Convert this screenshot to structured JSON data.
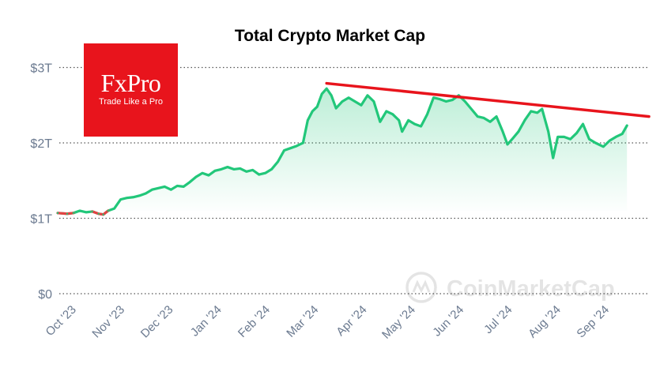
{
  "title": "Total Crypto Market Cap",
  "logo": {
    "brand": "FxPro",
    "tagline": "Trade Like a Pro"
  },
  "watermark": {
    "text": "CoinMarketCap"
  },
  "colors": {
    "line": "#22c77a",
    "fill_top": "#22c77a",
    "trend": "#e8141c",
    "downtrend_segment": "#e34242",
    "axis_text": "#6b7a90",
    "grid": "#555555",
    "logo_bg": "#e8141c"
  },
  "chart_data": {
    "type": "area",
    "title": "Total Crypto Market Cap",
    "y_unit": "USD",
    "y_ticks": [
      {
        "value": 0,
        "label": "$0"
      },
      {
        "value": 1,
        "label": "$1T"
      },
      {
        "value": 2,
        "label": "$2T"
      },
      {
        "value": 3,
        "label": "$3T"
      }
    ],
    "ylim": [
      0,
      3.1
    ],
    "grid": "horizontal dotted",
    "x_ticks": [
      "Oct '23",
      "Nov '23",
      "Dec '23",
      "Jan '24",
      "Feb '24",
      "Mar '24",
      "Apr '24",
      "May '24",
      "Jun '24",
      "Jul '24",
      "Aug '24",
      "Sep '24"
    ],
    "series": [
      {
        "values_trillions": [
          [
            "2023-09-25",
            1.07
          ],
          [
            "2023-10-01",
            1.06
          ],
          [
            "2023-10-05",
            1.07
          ],
          [
            "2023-10-09",
            1.1
          ],
          [
            "2023-10-13",
            1.08
          ],
          [
            "2023-10-17",
            1.09
          ],
          [
            "2023-10-21",
            1.06
          ],
          [
            "2023-10-24",
            1.05
          ],
          [
            "2023-10-27",
            1.1
          ],
          [
            "2023-10-31",
            1.13
          ],
          [
            "2023-11-04",
            1.25
          ],
          [
            "2023-11-08",
            1.27
          ],
          [
            "2023-11-12",
            1.28
          ],
          [
            "2023-11-16",
            1.3
          ],
          [
            "2023-11-20",
            1.33
          ],
          [
            "2023-11-24",
            1.38
          ],
          [
            "2023-11-28",
            1.4
          ],
          [
            "2023-12-02",
            1.42
          ],
          [
            "2023-12-06",
            1.38
          ],
          [
            "2023-12-10",
            1.43
          ],
          [
            "2023-12-14",
            1.42
          ],
          [
            "2023-12-18",
            1.48
          ],
          [
            "2023-12-22",
            1.55
          ],
          [
            "2023-12-26",
            1.6
          ],
          [
            "2023-12-30",
            1.57
          ],
          [
            "2024-01-03",
            1.63
          ],
          [
            "2024-01-07",
            1.65
          ],
          [
            "2024-01-11",
            1.68
          ],
          [
            "2024-01-15",
            1.65
          ],
          [
            "2024-01-19",
            1.66
          ],
          [
            "2024-01-23",
            1.62
          ],
          [
            "2024-01-27",
            1.64
          ],
          [
            "2024-01-31",
            1.58
          ],
          [
            "2024-02-04",
            1.6
          ],
          [
            "2024-02-08",
            1.65
          ],
          [
            "2024-02-12",
            1.75
          ],
          [
            "2024-02-16",
            1.9
          ],
          [
            "2024-02-20",
            1.93
          ],
          [
            "2024-02-24",
            1.96
          ],
          [
            "2024-02-28",
            2.0
          ],
          [
            "2024-03-02",
            2.3
          ],
          [
            "2024-03-05",
            2.42
          ],
          [
            "2024-03-08",
            2.48
          ],
          [
            "2024-03-11",
            2.65
          ],
          [
            "2024-03-14",
            2.72
          ],
          [
            "2024-03-17",
            2.63
          ],
          [
            "2024-03-20",
            2.46
          ],
          [
            "2024-03-24",
            2.55
          ],
          [
            "2024-03-28",
            2.6
          ],
          [
            "2024-04-01",
            2.55
          ],
          [
            "2024-04-05",
            2.5
          ],
          [
            "2024-04-09",
            2.63
          ],
          [
            "2024-04-13",
            2.55
          ],
          [
            "2024-04-17",
            2.28
          ],
          [
            "2024-04-21",
            2.42
          ],
          [
            "2024-04-25",
            2.38
          ],
          [
            "2024-04-29",
            2.3
          ],
          [
            "2024-05-01",
            2.15
          ],
          [
            "2024-05-05",
            2.3
          ],
          [
            "2024-05-09",
            2.25
          ],
          [
            "2024-05-13",
            2.22
          ],
          [
            "2024-05-17",
            2.38
          ],
          [
            "2024-05-21",
            2.6
          ],
          [
            "2024-05-25",
            2.58
          ],
          [
            "2024-05-29",
            2.55
          ],
          [
            "2024-06-02",
            2.57
          ],
          [
            "2024-06-06",
            2.63
          ],
          [
            "2024-06-10",
            2.55
          ],
          [
            "2024-06-14",
            2.45
          ],
          [
            "2024-06-18",
            2.35
          ],
          [
            "2024-06-22",
            2.33
          ],
          [
            "2024-06-26",
            2.28
          ],
          [
            "2024-06-30",
            2.35
          ],
          [
            "2024-07-04",
            2.15
          ],
          [
            "2024-07-07",
            1.98
          ],
          [
            "2024-07-10",
            2.05
          ],
          [
            "2024-07-14",
            2.15
          ],
          [
            "2024-07-18",
            2.3
          ],
          [
            "2024-07-22",
            2.42
          ],
          [
            "2024-07-26",
            2.4
          ],
          [
            "2024-07-29",
            2.45
          ],
          [
            "2024-08-02",
            2.15
          ],
          [
            "2024-08-05",
            1.8
          ],
          [
            "2024-08-08",
            2.08
          ],
          [
            "2024-08-12",
            2.08
          ],
          [
            "2024-08-16",
            2.05
          ],
          [
            "2024-08-20",
            2.13
          ],
          [
            "2024-08-24",
            2.25
          ],
          [
            "2024-08-28",
            2.05
          ],
          [
            "2024-09-01",
            2.0
          ],
          [
            "2024-09-06",
            1.95
          ],
          [
            "2024-09-10",
            2.03
          ],
          [
            "2024-09-14",
            2.08
          ],
          [
            "2024-09-18",
            2.12
          ],
          [
            "2024-09-21",
            2.23
          ]
        ]
      }
    ],
    "trendline": {
      "start": [
        "2024-03-14",
        2.79
      ],
      "end": [
        "2024-10-05",
        2.35
      ]
    },
    "highlighted_range": {
      "start": "2023-10-17",
      "end": "2023-10-27"
    }
  }
}
